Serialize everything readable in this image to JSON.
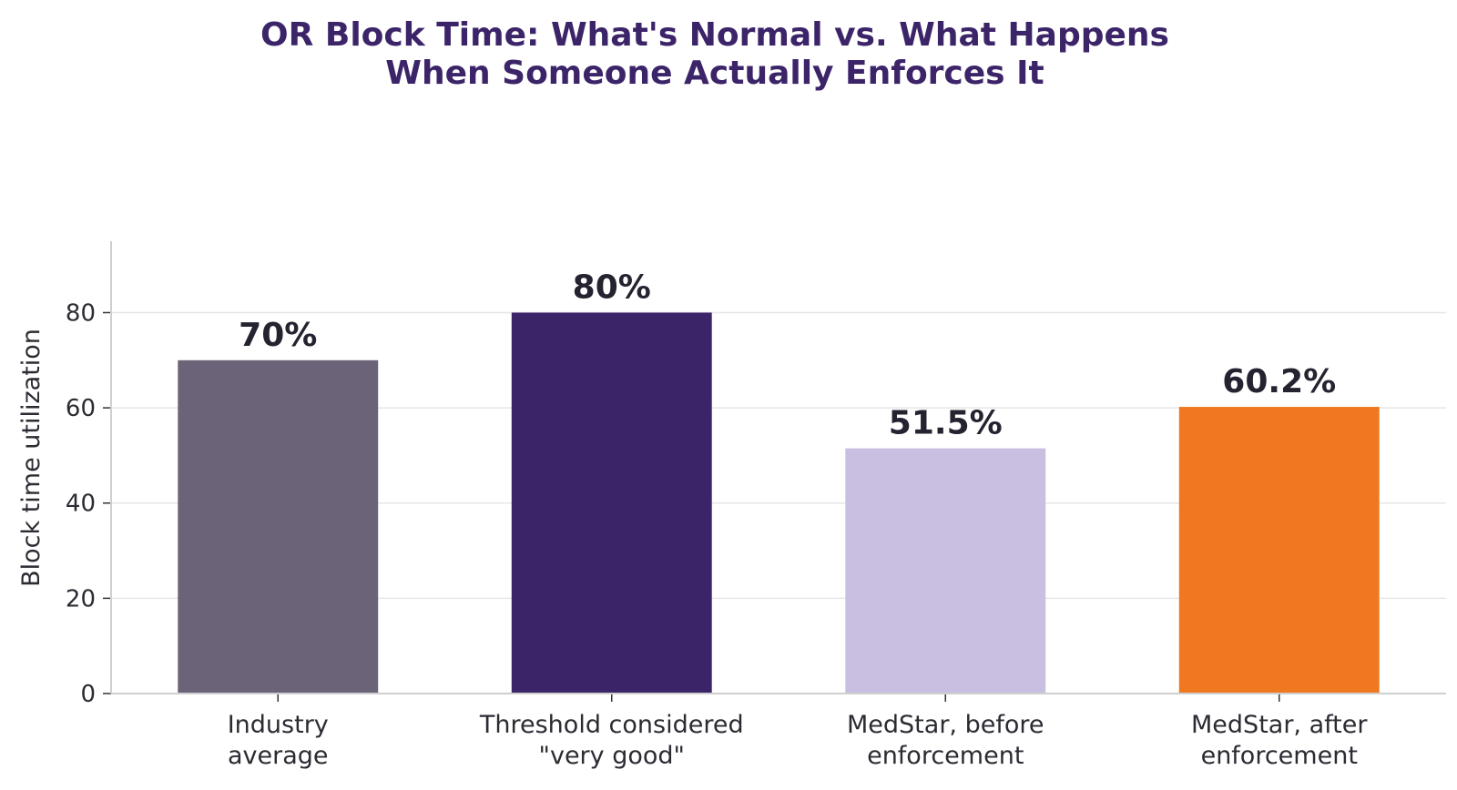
{
  "chart_data": {
    "type": "bar",
    "title_lines": [
      "OR Block Time: What's Normal vs. What Happens",
      "When Someone Actually Enforces It"
    ],
    "xlabel": "",
    "ylabel": "Block time utilization",
    "ylim": [
      0,
      95
    ],
    "yticks": [
      0,
      20,
      40,
      60,
      80
    ],
    "grid": "horizontal",
    "categories": [
      [
        "Industry",
        "average"
      ],
      [
        "Threshold considered",
        "\"very good\""
      ],
      [
        "MedStar, before",
        "enforcement"
      ],
      [
        "MedStar, after",
        "enforcement"
      ]
    ],
    "values": [
      70,
      80,
      51.5,
      60.2
    ],
    "value_labels": [
      "70%",
      "80%",
      "51.5%",
      "60.2%"
    ],
    "colors": [
      "#6b6377",
      "#3c2469",
      "#c9bfe0",
      "#f07820"
    ],
    "title_color": "#3c2469"
  }
}
